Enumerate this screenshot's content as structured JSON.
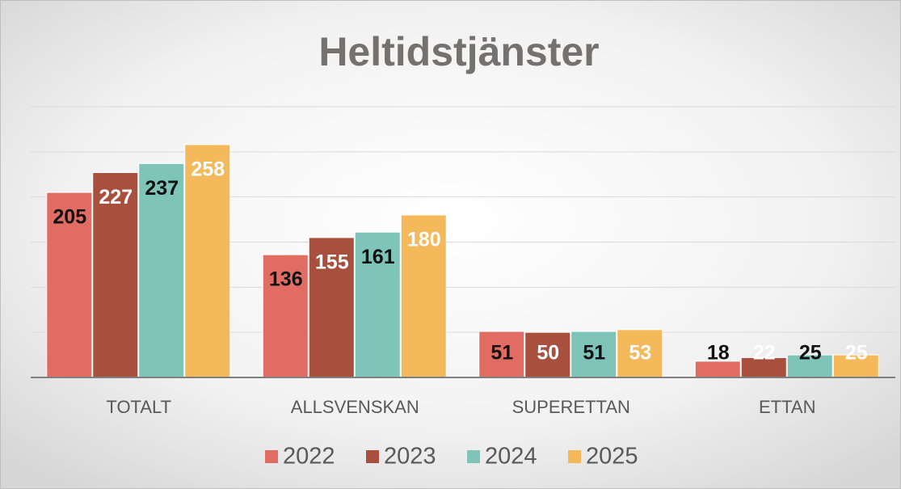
{
  "chart_data": {
    "type": "bar",
    "title": "Heltidstjänster",
    "categories": [
      "TOTALT",
      "ALLSVENSKAN",
      "SUPERETTAN",
      "ETTAN"
    ],
    "series": [
      {
        "name": "2022",
        "color": "#e06c63",
        "label_color": "#111111",
        "values": [
          205,
          136,
          51,
          18
        ]
      },
      {
        "name": "2023",
        "color": "#a84f3e",
        "label_color": "#ffffff",
        "values": [
          227,
          155,
          50,
          22
        ]
      },
      {
        "name": "2024",
        "color": "#7fc4b8",
        "label_color": "#111111",
        "values": [
          237,
          161,
          51,
          25
        ]
      },
      {
        "name": "2025",
        "color": "#f3b95a",
        "label_color": "#ffffff",
        "values": [
          258,
          180,
          53,
          25
        ]
      }
    ],
    "ylim": [
      0,
      300
    ],
    "yticks": [
      0,
      50,
      100,
      150,
      200,
      250,
      300
    ],
    "grid": true,
    "legend": "bottom"
  }
}
